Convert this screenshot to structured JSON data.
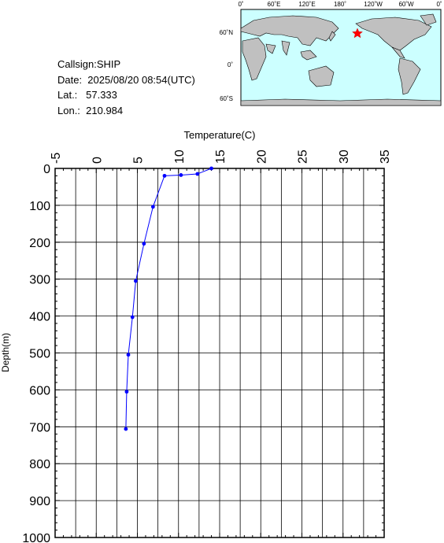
{
  "info": {
    "callsign": "Callsign:SHIP",
    "date": "Date:  2025/08/20 08:54(UTC)",
    "lat": "Lat.:   57.333",
    "lon": "Lon.:  210.984"
  },
  "map": {
    "top_labels": [
      "0˚",
      "60˚E",
      "120˚E",
      "180˚",
      "120˚W",
      "60˚W",
      "0˚"
    ],
    "left_labels": [
      "60˚N",
      "0˚",
      "60˚S"
    ],
    "ocean_color": "#ccffff",
    "land_color": "#c0c0c0",
    "marker_icon": "red-star",
    "marker_color": "#ff0000"
  },
  "chart_data": {
    "type": "line",
    "title": "",
    "xlabel": "Temperature(C)",
    "ylabel": "Depth(m)",
    "xlim": [
      -5,
      35
    ],
    "ylim": [
      0,
      1000
    ],
    "x_axis_position": "top",
    "y_inverted": true,
    "xticks": [
      "-5",
      "0",
      "5",
      "10",
      "15",
      "20",
      "25",
      "30",
      "35"
    ],
    "yticks": [
      "0",
      "100",
      "200",
      "300",
      "400",
      "500",
      "600",
      "700",
      "800",
      "900",
      "1000"
    ],
    "grid": true,
    "series_color": "#0000ff",
    "series": [
      {
        "points": [
          {
            "t": 14.0,
            "d": 0
          },
          {
            "t": 12.3,
            "d": 15
          },
          {
            "t": 10.3,
            "d": 18
          },
          {
            "t": 8.3,
            "d": 20
          },
          {
            "t": 6.9,
            "d": 104
          },
          {
            "t": 5.8,
            "d": 204
          },
          {
            "t": 4.8,
            "d": 305
          },
          {
            "t": 4.4,
            "d": 403
          },
          {
            "t": 3.9,
            "d": 505
          },
          {
            "t": 3.7,
            "d": 605
          },
          {
            "t": 3.6,
            "d": 706
          }
        ]
      }
    ]
  }
}
